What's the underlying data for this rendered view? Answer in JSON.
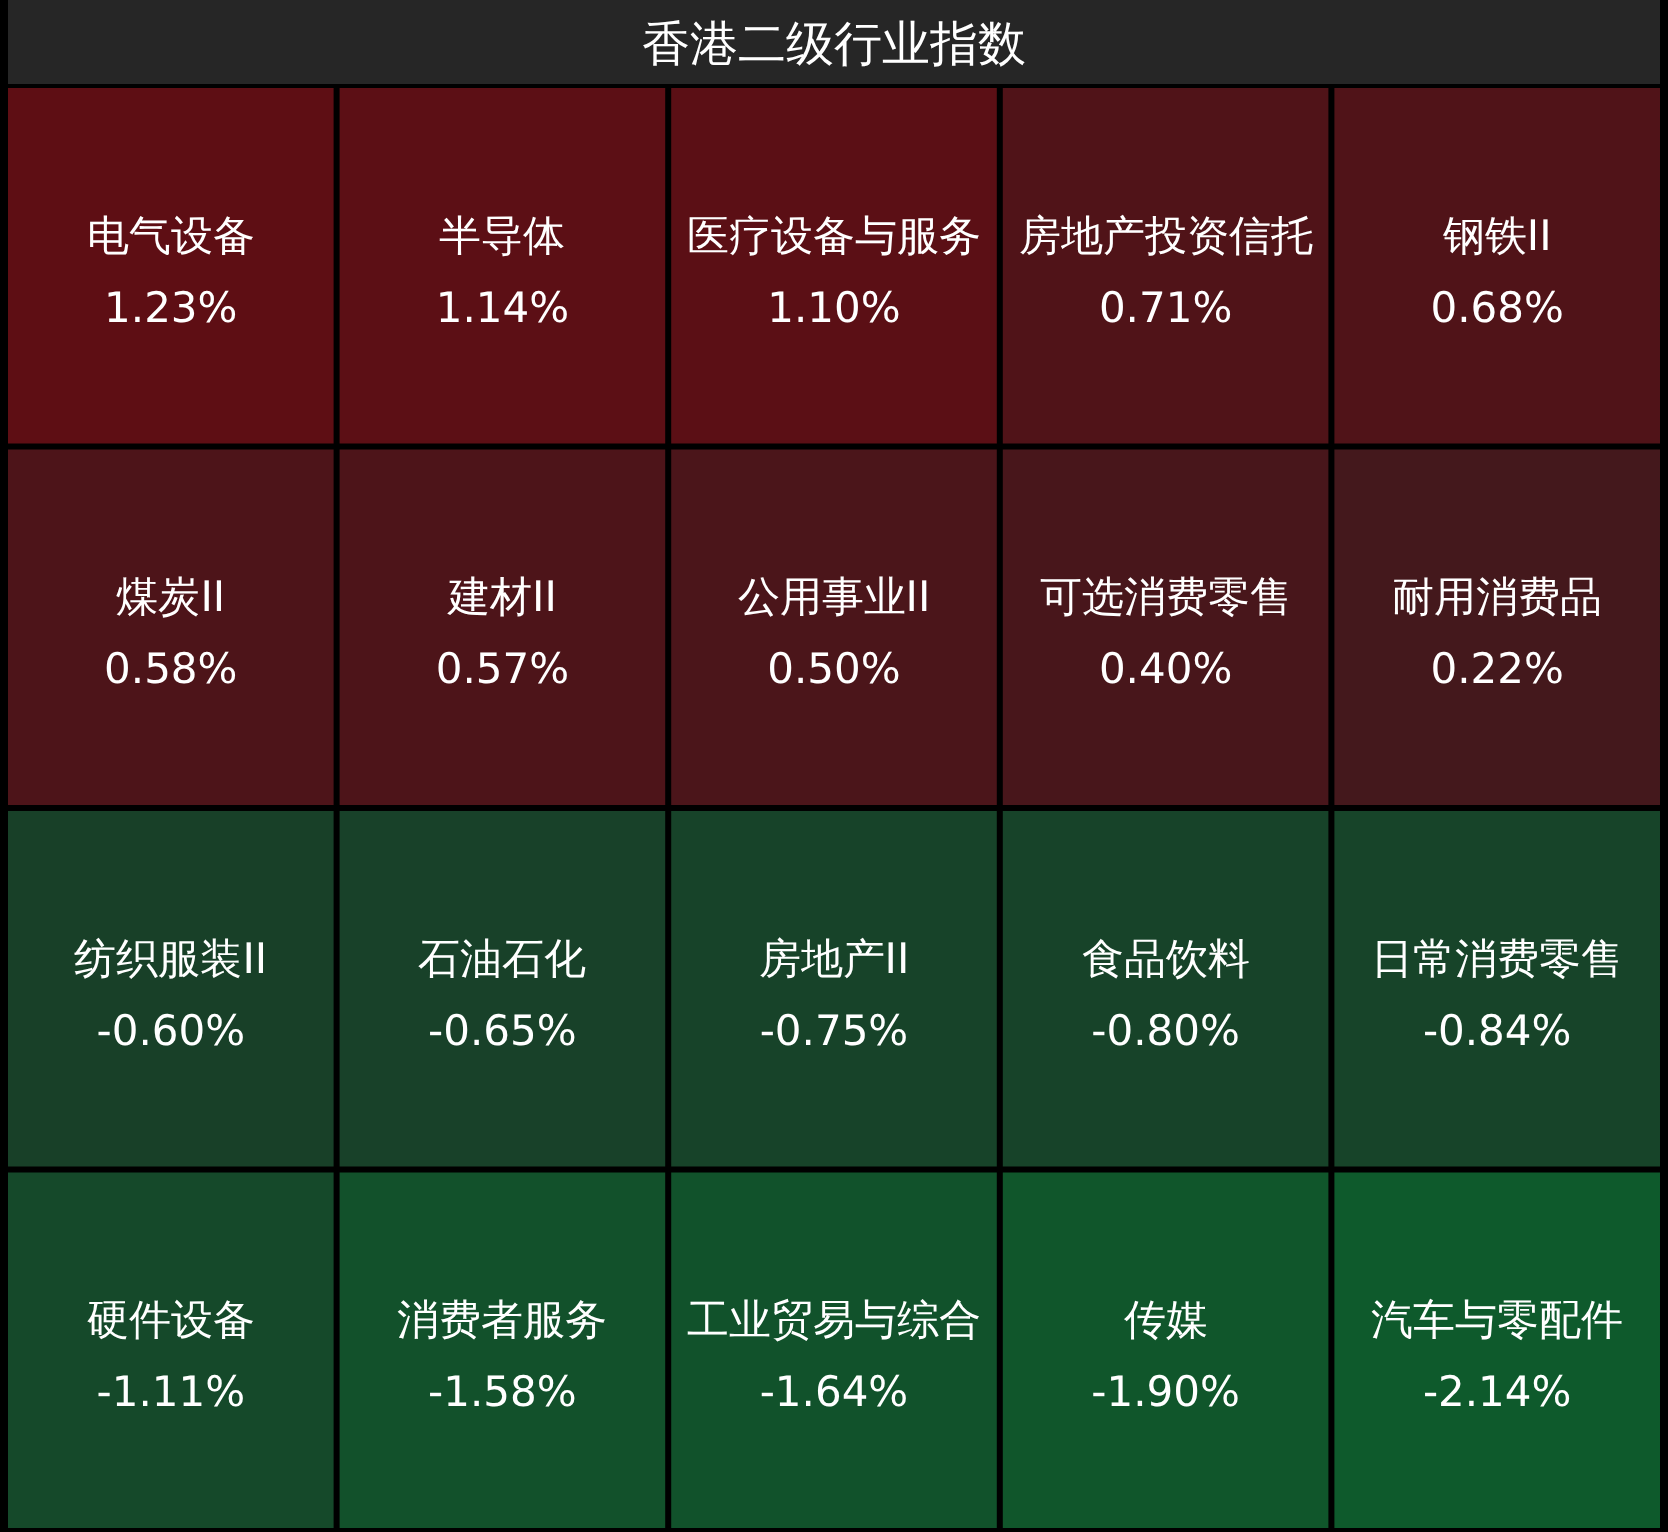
{
  "chart_data": {
    "type": "other",
    "title": "香港二级行业指数",
    "categories": [
      "电气设备",
      "半导体",
      "医疗设备与服务",
      "房地产投资信托",
      "钢铁II",
      "煤炭II",
      "建材II",
      "公用事业II",
      "可选消费零售",
      "耐用消费品",
      "纺织服装II",
      "石油石化",
      "房地产II",
      "食品饮料",
      "日常消费零售",
      "硬件设备",
      "消费者服务",
      "工业贸易与综合",
      "传媒",
      "汽车与零配件"
    ],
    "values": [
      1.23,
      1.14,
      1.1,
      0.71,
      0.68,
      0.58,
      0.57,
      0.5,
      0.4,
      0.22,
      -0.6,
      -0.65,
      -0.75,
      -0.8,
      -0.84,
      -1.11,
      -1.58,
      -1.64,
      -1.9,
      -2.14
    ],
    "value_labels": [
      "1.23%",
      "1.14%",
      "1.10%",
      "0.71%",
      "0.68%",
      "0.58%",
      "0.57%",
      "0.50%",
      "0.40%",
      "0.22%",
      "-0.60%",
      "-0.65%",
      "-0.75%",
      "-0.80%",
      "-0.84%",
      "-1.11%",
      "-1.58%",
      "-1.64%",
      "-1.90%",
      "-2.14%"
    ]
  }
}
